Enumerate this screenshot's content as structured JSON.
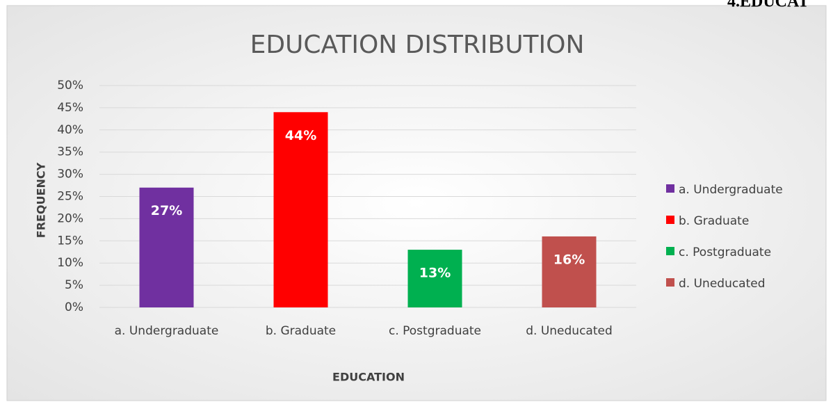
{
  "heading": "4.EDUCAT",
  "chart_data": {
    "type": "bar",
    "title": "EDUCATION DISTRIBUTION",
    "x_label": "EDUCATION",
    "y_label": "FREQUENCY",
    "categories": [
      "a. Undergraduate",
      "b. Graduate",
      "c. Postgraduate",
      "d. Uneducated"
    ],
    "values": [
      27,
      44,
      13,
      16
    ],
    "value_labels": [
      "27%",
      "44%",
      "13%",
      "16%"
    ],
    "colors": [
      "#7030a0",
      "#ff0000",
      "#00b050",
      "#c0504d"
    ],
    "ylim": [
      0,
      50
    ],
    "yticks": [
      {
        "value": 0,
        "label": "0%"
      },
      {
        "value": 5,
        "label": "5%"
      },
      {
        "value": 10,
        "label": "10%"
      },
      {
        "value": 15,
        "label": "15%"
      },
      {
        "value": 20,
        "label": "20%"
      },
      {
        "value": 25,
        "label": "25%"
      },
      {
        "value": 30,
        "label": "30%"
      },
      {
        "value": 35,
        "label": "35%"
      },
      {
        "value": 40,
        "label": "40%"
      },
      {
        "value": 45,
        "label": "45%"
      },
      {
        "value": 50,
        "label": "50%"
      }
    ],
    "grid": true,
    "legend": "right"
  }
}
